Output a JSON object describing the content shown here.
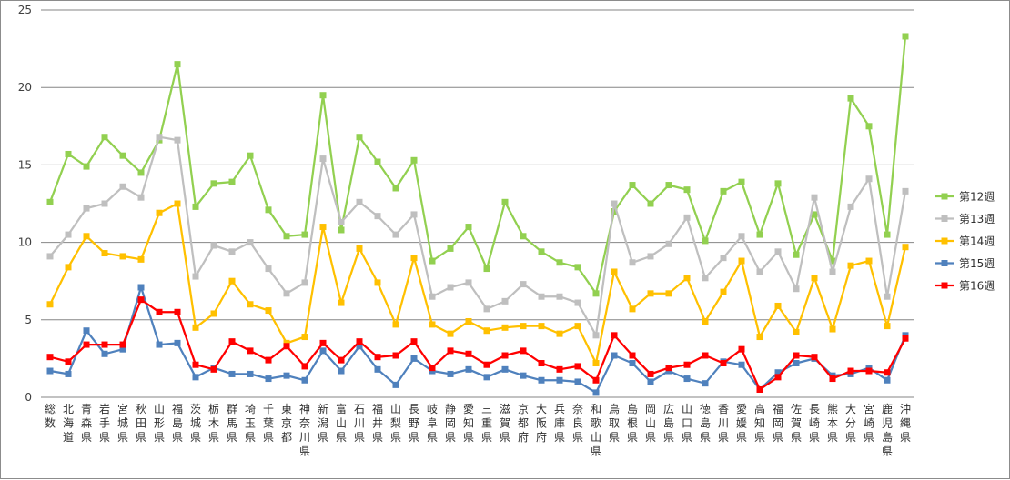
{
  "chart_data": {
    "type": "line",
    "ylim": [
      0,
      25
    ],
    "yticks": [
      "0",
      "5",
      "10",
      "15",
      "20",
      "25"
    ],
    "grid": true,
    "legend_position": "right",
    "categories": [
      "総数",
      "北海道",
      "青森県",
      "岩手県",
      "宮城県",
      "秋田県",
      "山形県",
      "福島県",
      "茨城県",
      "栃木県",
      "群馬県",
      "埼玉県",
      "千葉県",
      "東京都",
      "神奈川県",
      "新潟県",
      "富山県",
      "石川県",
      "福井県",
      "山梨県",
      "長野県",
      "岐阜県",
      "静岡県",
      "愛知県",
      "三重県",
      "滋賀県",
      "京都府",
      "大阪府",
      "兵庫県",
      "奈良県",
      "和歌山県",
      "鳥取県",
      "島根県",
      "岡山県",
      "広島県",
      "山口県",
      "徳島県",
      "香川県",
      "愛媛県",
      "高知県",
      "福岡県",
      "佐賀県",
      "長崎県",
      "熊本県",
      "大分県",
      "宮崎県",
      "鹿児島県",
      "沖縄県"
    ],
    "series": [
      {
        "name": "第12週",
        "color": "#92d050",
        "values": [
          12.6,
          15.7,
          14.9,
          16.8,
          15.6,
          14.5,
          16.6,
          21.5,
          12.3,
          13.8,
          13.9,
          15.6,
          12.1,
          10.4,
          10.5,
          19.5,
          10.8,
          16.8,
          15.2,
          13.5,
          15.3,
          8.8,
          9.6,
          11.0,
          8.3,
          12.6,
          10.4,
          9.4,
          8.7,
          8.4,
          6.7,
          12.0,
          13.7,
          12.5,
          13.7,
          13.4,
          10.1,
          13.3,
          13.9,
          10.5,
          13.8,
          9.2,
          11.8,
          8.8,
          19.3,
          17.5,
          10.5,
          23.3
        ]
      },
      {
        "name": "第13週",
        "color": "#bfbfbf",
        "values": [
          9.1,
          10.5,
          12.2,
          12.5,
          13.6,
          12.9,
          16.8,
          16.6,
          7.8,
          9.8,
          9.4,
          10.0,
          8.3,
          6.7,
          7.4,
          15.4,
          11.3,
          12.6,
          11.7,
          10.5,
          11.8,
          6.5,
          7.1,
          7.4,
          5.7,
          6.2,
          7.3,
          6.5,
          6.5,
          6.1,
          4.0,
          12.5,
          8.7,
          9.1,
          9.9,
          11.6,
          7.7,
          9.0,
          10.4,
          8.1,
          9.4,
          7.0,
          12.9,
          8.1,
          12.3,
          14.1,
          6.5,
          13.3
        ]
      },
      {
        "name": "第14週",
        "color": "#ffc000",
        "values": [
          6.0,
          8.4,
          10.4,
          9.3,
          9.1,
          8.9,
          11.9,
          12.5,
          4.5,
          5.4,
          7.5,
          6.0,
          5.6,
          3.5,
          3.9,
          11.0,
          6.1,
          9.6,
          7.4,
          4.7,
          9.0,
          4.7,
          4.1,
          4.9,
          4.3,
          4.5,
          4.6,
          4.6,
          4.1,
          4.6,
          2.2,
          8.1,
          5.7,
          6.7,
          6.7,
          7.7,
          4.9,
          6.8,
          8.8,
          3.9,
          5.9,
          4.2,
          7.7,
          4.4,
          8.5,
          8.8,
          4.6,
          9.7
        ]
      },
      {
        "name": "第15週",
        "color": "#4f81bd",
        "values": [
          1.7,
          1.5,
          4.3,
          2.8,
          3.1,
          7.1,
          3.4,
          3.5,
          1.3,
          1.9,
          1.5,
          1.5,
          1.2,
          1.4,
          1.1,
          3.0,
          1.7,
          3.3,
          1.8,
          0.8,
          2.5,
          1.7,
          1.5,
          1.8,
          1.3,
          1.8,
          1.4,
          1.1,
          1.1,
          1.0,
          0.3,
          2.7,
          2.2,
          1.0,
          1.7,
          1.2,
          0.9,
          2.3,
          2.1,
          0.5,
          1.6,
          2.2,
          2.5,
          1.4,
          1.5,
          1.9,
          1.1,
          4.0
        ]
      },
      {
        "name": "第16週",
        "color": "#ff0000",
        "values": [
          2.6,
          2.3,
          3.4,
          3.4,
          3.4,
          6.3,
          5.5,
          5.5,
          2.1,
          1.8,
          3.6,
          3.0,
          2.4,
          3.3,
          2.0,
          3.5,
          2.4,
          3.6,
          2.6,
          2.7,
          3.6,
          1.9,
          3.0,
          2.8,
          2.1,
          2.7,
          3.0,
          2.2,
          1.8,
          2.0,
          1.1,
          4.0,
          2.7,
          1.5,
          1.9,
          2.1,
          2.7,
          2.2,
          3.1,
          0.5,
          1.3,
          2.7,
          2.6,
          1.2,
          1.7,
          1.7,
          1.6,
          3.8
        ]
      }
    ]
  }
}
